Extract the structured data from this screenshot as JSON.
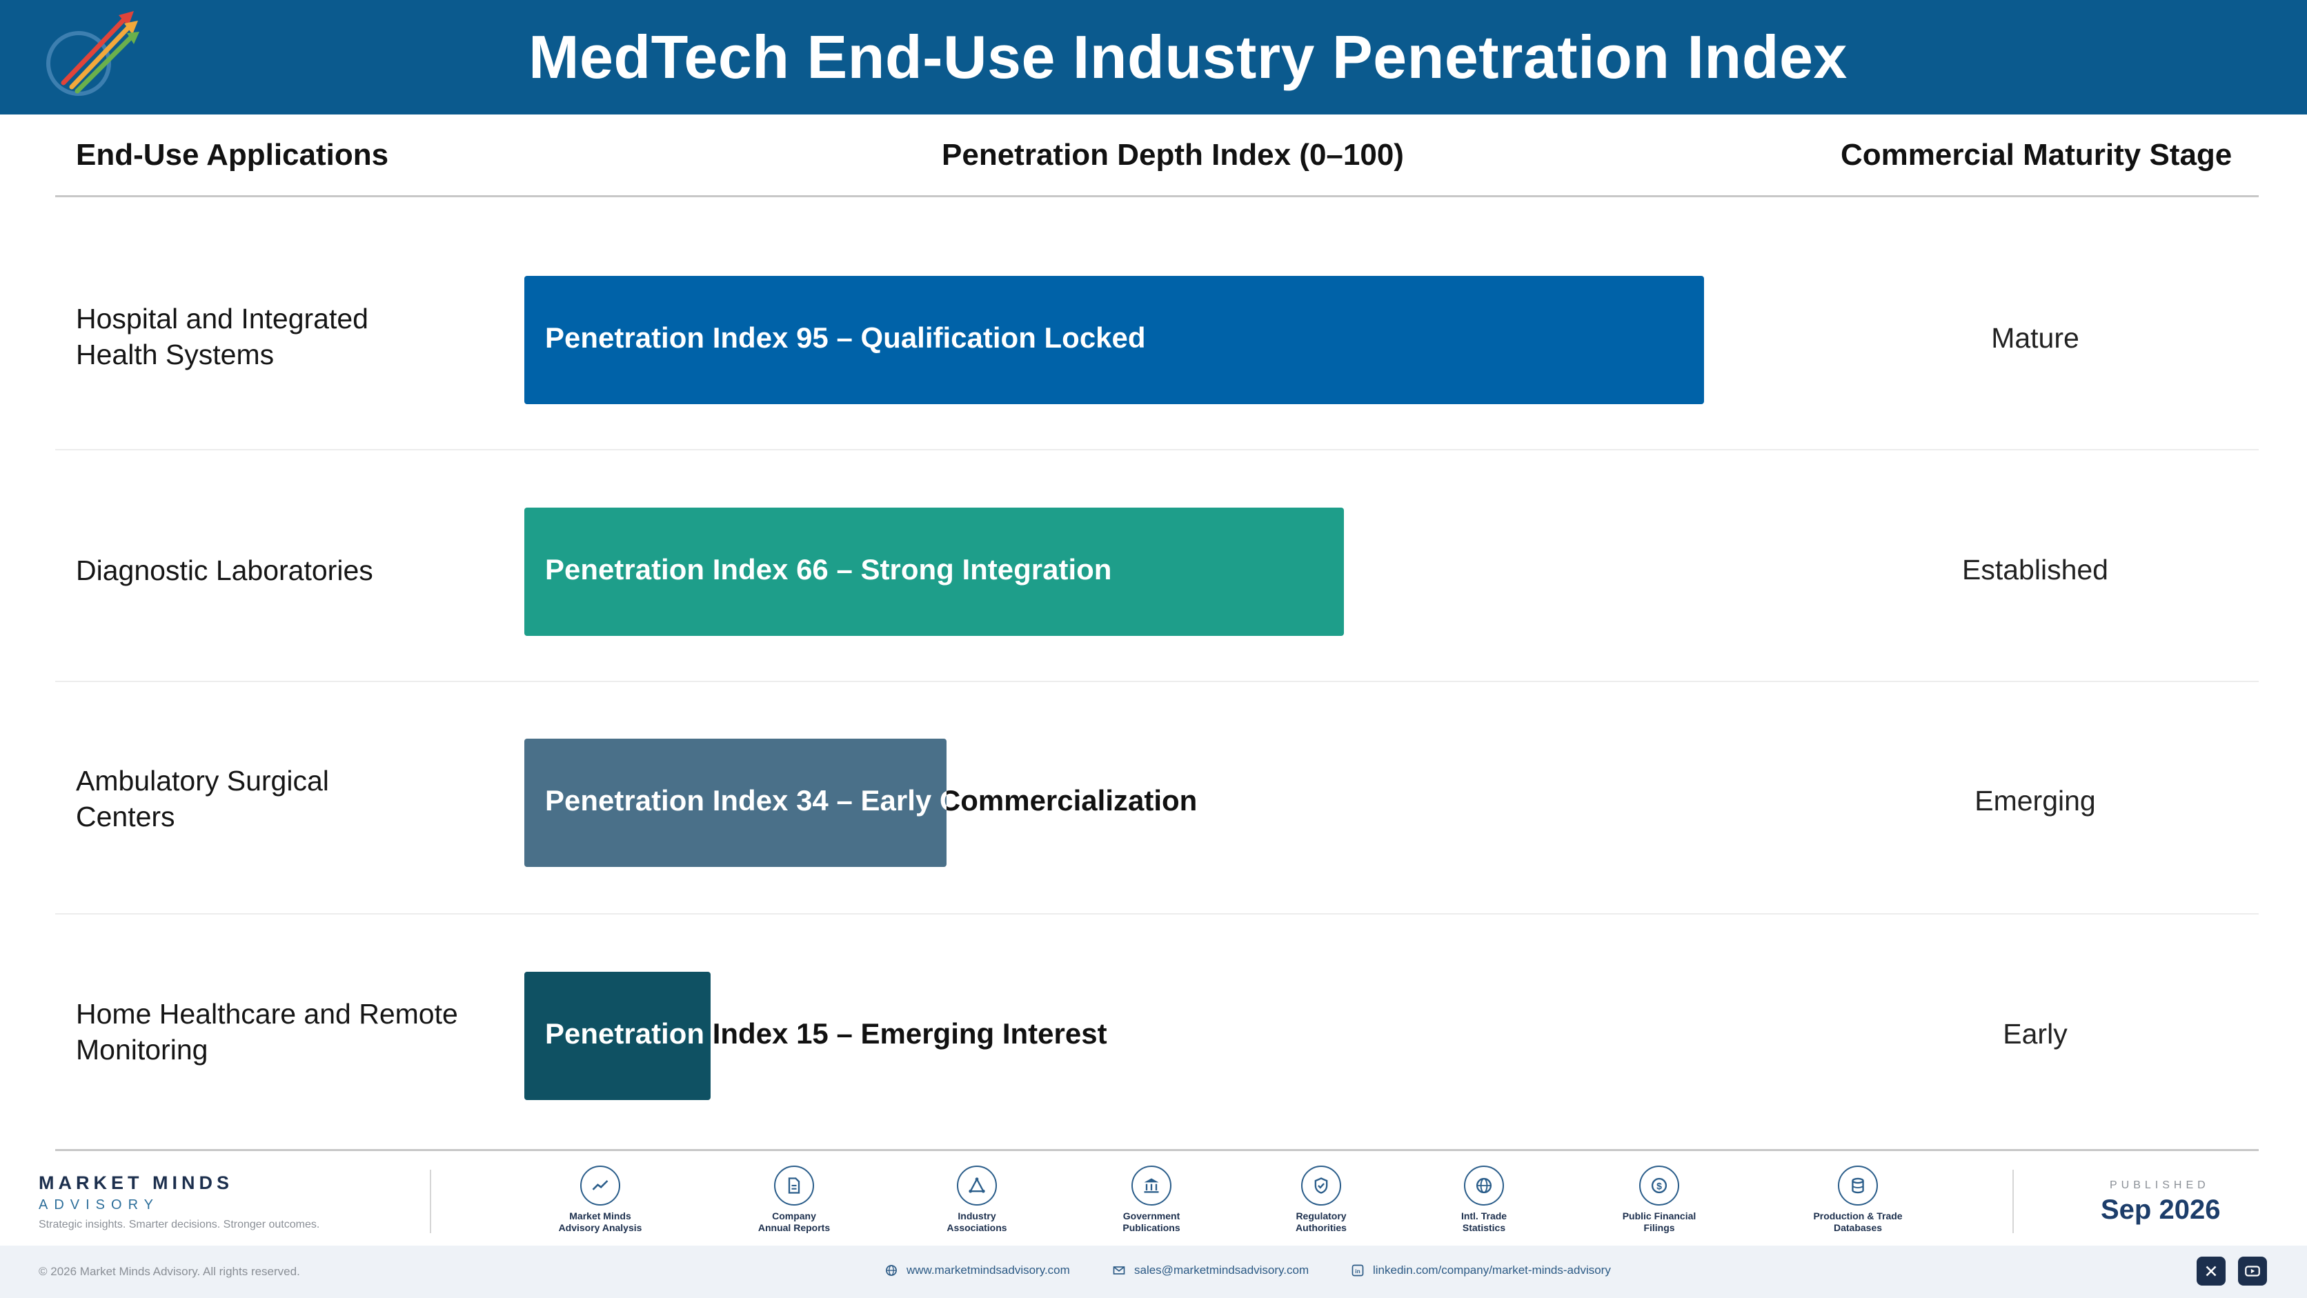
{
  "header": {
    "title": "MedTech End-Use Industry Penetration Index"
  },
  "columns": {
    "applications": "End-Use Applications",
    "index": "Penetration Depth Index (0–100)",
    "stage": "Commercial Maturity Stage"
  },
  "chart_data": {
    "type": "bar",
    "orientation": "horizontal",
    "xlim": [
      0,
      100
    ],
    "categories": [
      "Hospital and Integrated Health Systems",
      "Diagnostic Laboratories",
      "Ambulatory Surgical Centers",
      "Home Healthcare and Remote Monitoring"
    ],
    "values": [
      95,
      66,
      34,
      15
    ],
    "bar_labels": [
      "Penetration Index 95 – Qualification Locked",
      "Penetration Index 66 – Strong Integration",
      "Penetration Index 34 – Early Commercialization",
      "Penetration Index 15 – Emerging Interest"
    ],
    "stages": [
      "Mature",
      "Established",
      "Emerging",
      "Early"
    ],
    "colors": [
      "#0062a8",
      "#1e9e8a",
      "#4a7089",
      "#0f5163"
    ]
  },
  "rows": [
    {
      "label_line1": "Hospital and Integrated",
      "label_line2": "Health Systems"
    },
    {
      "label_line1": "Diagnostic Laboratories",
      "label_line2": ""
    },
    {
      "label_line1": "Ambulatory Surgical",
      "label_line2": "Centers"
    },
    {
      "label_line1": "Home Healthcare and Remote",
      "label_line2": "Monitoring"
    }
  ],
  "footer": {
    "brand_name": "MARKET MINDS",
    "brand_sub": "ADVISORY",
    "tagline": "Strategic insights. Smarter decisions. Stronger outcomes.",
    "sources": [
      {
        "line1": "Market Minds",
        "line2": "Advisory Analysis",
        "icon": "trend-line-icon"
      },
      {
        "line1": "Company",
        "line2": "Annual Reports",
        "icon": "document-icon"
      },
      {
        "line1": "Industry",
        "line2": "Associations",
        "icon": "network-icon"
      },
      {
        "line1": "Government",
        "line2": "Publications",
        "icon": "bank-icon"
      },
      {
        "line1": "Regulatory",
        "line2": "Authorities",
        "icon": "shield-check-icon"
      },
      {
        "line1": "Intl. Trade",
        "line2": "Statistics",
        "icon": "globe-icon"
      },
      {
        "line1": "Public Financial",
        "line2": "Filings",
        "icon": "dollar-coin-icon"
      },
      {
        "line1": "Production & Trade",
        "line2": "Databases",
        "icon": "database-icon"
      }
    ],
    "published_label": "PUBLISHED",
    "published_date": "Sep 2026",
    "copyright": "© 2026 Market Minds Advisory. All rights reserved.",
    "website": "www.marketmindsadvisory.com",
    "email": "sales@marketmindsadvisory.com",
    "linkedin": "linkedin.com/company/market-minds-advisory",
    "accent": "#0b5a8e"
  }
}
